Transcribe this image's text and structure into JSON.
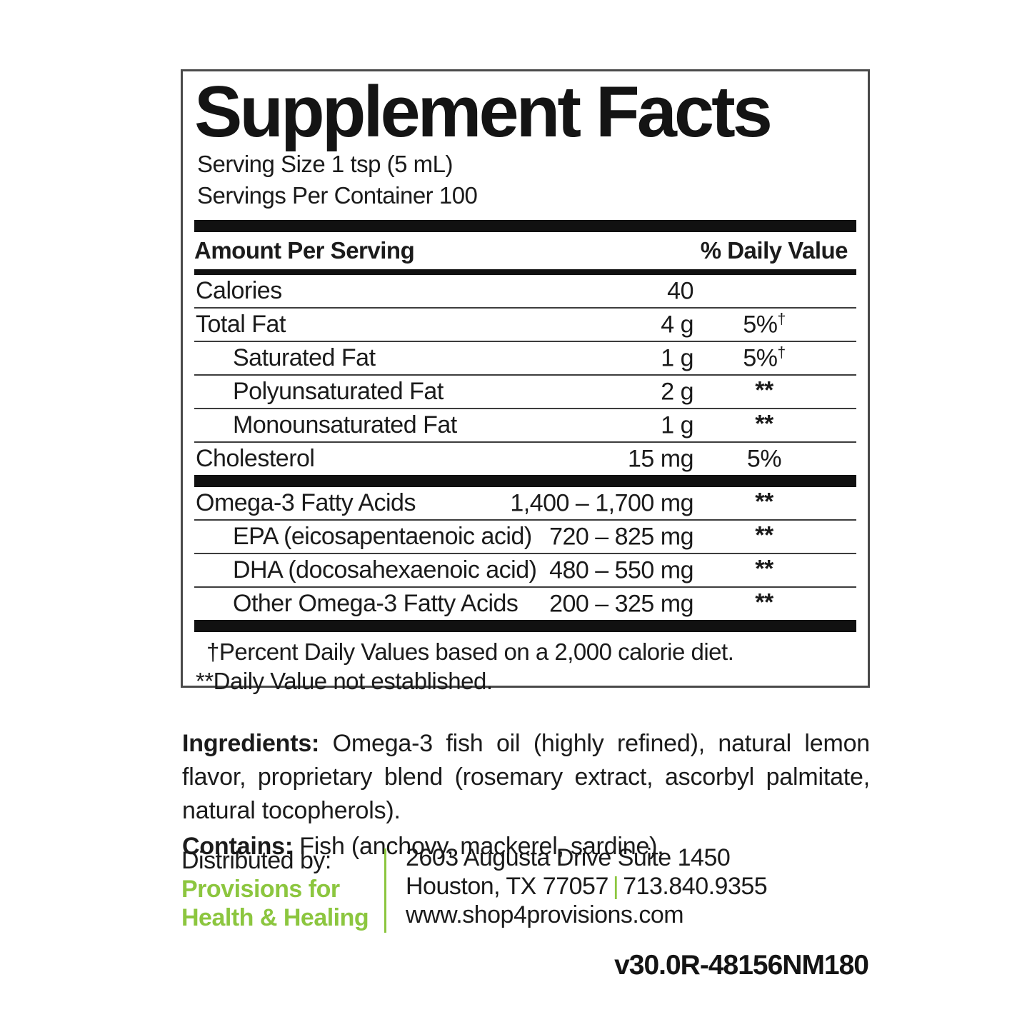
{
  "colors": {
    "accent_green": "#8CC63F",
    "bar_black": "#111111",
    "text": "#1b1b1b"
  },
  "label": {
    "title": "Supplement Facts",
    "serving_size": "Serving Size 1 tsp (5 mL)",
    "servings_per_container": "Servings Per Container 100",
    "col_amount_header": "Amount Per Serving",
    "col_dv_header": "% Daily Value",
    "rows": [
      {
        "label": "Calories",
        "amount": "40",
        "dv": "",
        "dv_sup": "",
        "indent": false
      },
      {
        "label": "Total Fat",
        "amount": "4 g",
        "dv": "5%",
        "dv_sup": "†",
        "indent": false
      },
      {
        "label": "Saturated Fat",
        "amount": "1 g",
        "dv": "5%",
        "dv_sup": "†",
        "indent": true
      },
      {
        "label": "Polyunsaturated Fat",
        "amount": "2 g",
        "dv": "**",
        "dv_sup": "",
        "indent": true
      },
      {
        "label": "Monounsaturated Fat",
        "amount": "1 g",
        "dv": "**",
        "dv_sup": "",
        "indent": true
      },
      {
        "label": "Cholesterol",
        "amount": "15 mg",
        "dv": "5%",
        "dv_sup": "",
        "indent": false
      }
    ],
    "omega_rows": [
      {
        "label": "Omega-3 Fatty Acids",
        "amount": "1,400 – 1,700 mg",
        "dv": "**",
        "dv_sup": "",
        "indent": false
      },
      {
        "label": "EPA (eicosapentaenoic acid)",
        "amount": "720 – 825 mg",
        "dv": "**",
        "dv_sup": "",
        "indent": true
      },
      {
        "label": "DHA (docosahexaenoic acid)",
        "amount": "480 – 550 mg",
        "dv": "**",
        "dv_sup": "",
        "indent": true
      },
      {
        "label": "Other Omega-3 Fatty Acids",
        "amount": "200 – 325 mg",
        "dv": "**",
        "dv_sup": "",
        "indent": true
      }
    ],
    "footnotes": [
      "†Percent Daily Values based on a 2,000 calorie diet.",
      "**Daily Value not established."
    ]
  },
  "ingredients": {
    "label": "Ingredients:",
    "text": "Omega-3 fish oil (highly refined), natural lemon flavor, proprietary blend (rosemary extract, ascorbyl palmitate, natural tocopherols)."
  },
  "contains": {
    "label": "Contains:",
    "text": "Fish (anchovy, mackerel, sardine)."
  },
  "distributor": {
    "heading": "Distributed by:",
    "name_line1": "Provisions for",
    "name_line2": "Health & Healing",
    "address_line1": "2603 Augusta Drive Suite 1450",
    "address_city": "Houston, TX 77057",
    "separator": "|",
    "phone": "713.840.9355",
    "website": "www.shop4provisions.com"
  },
  "product_code": "v30.0R-48156NM180"
}
